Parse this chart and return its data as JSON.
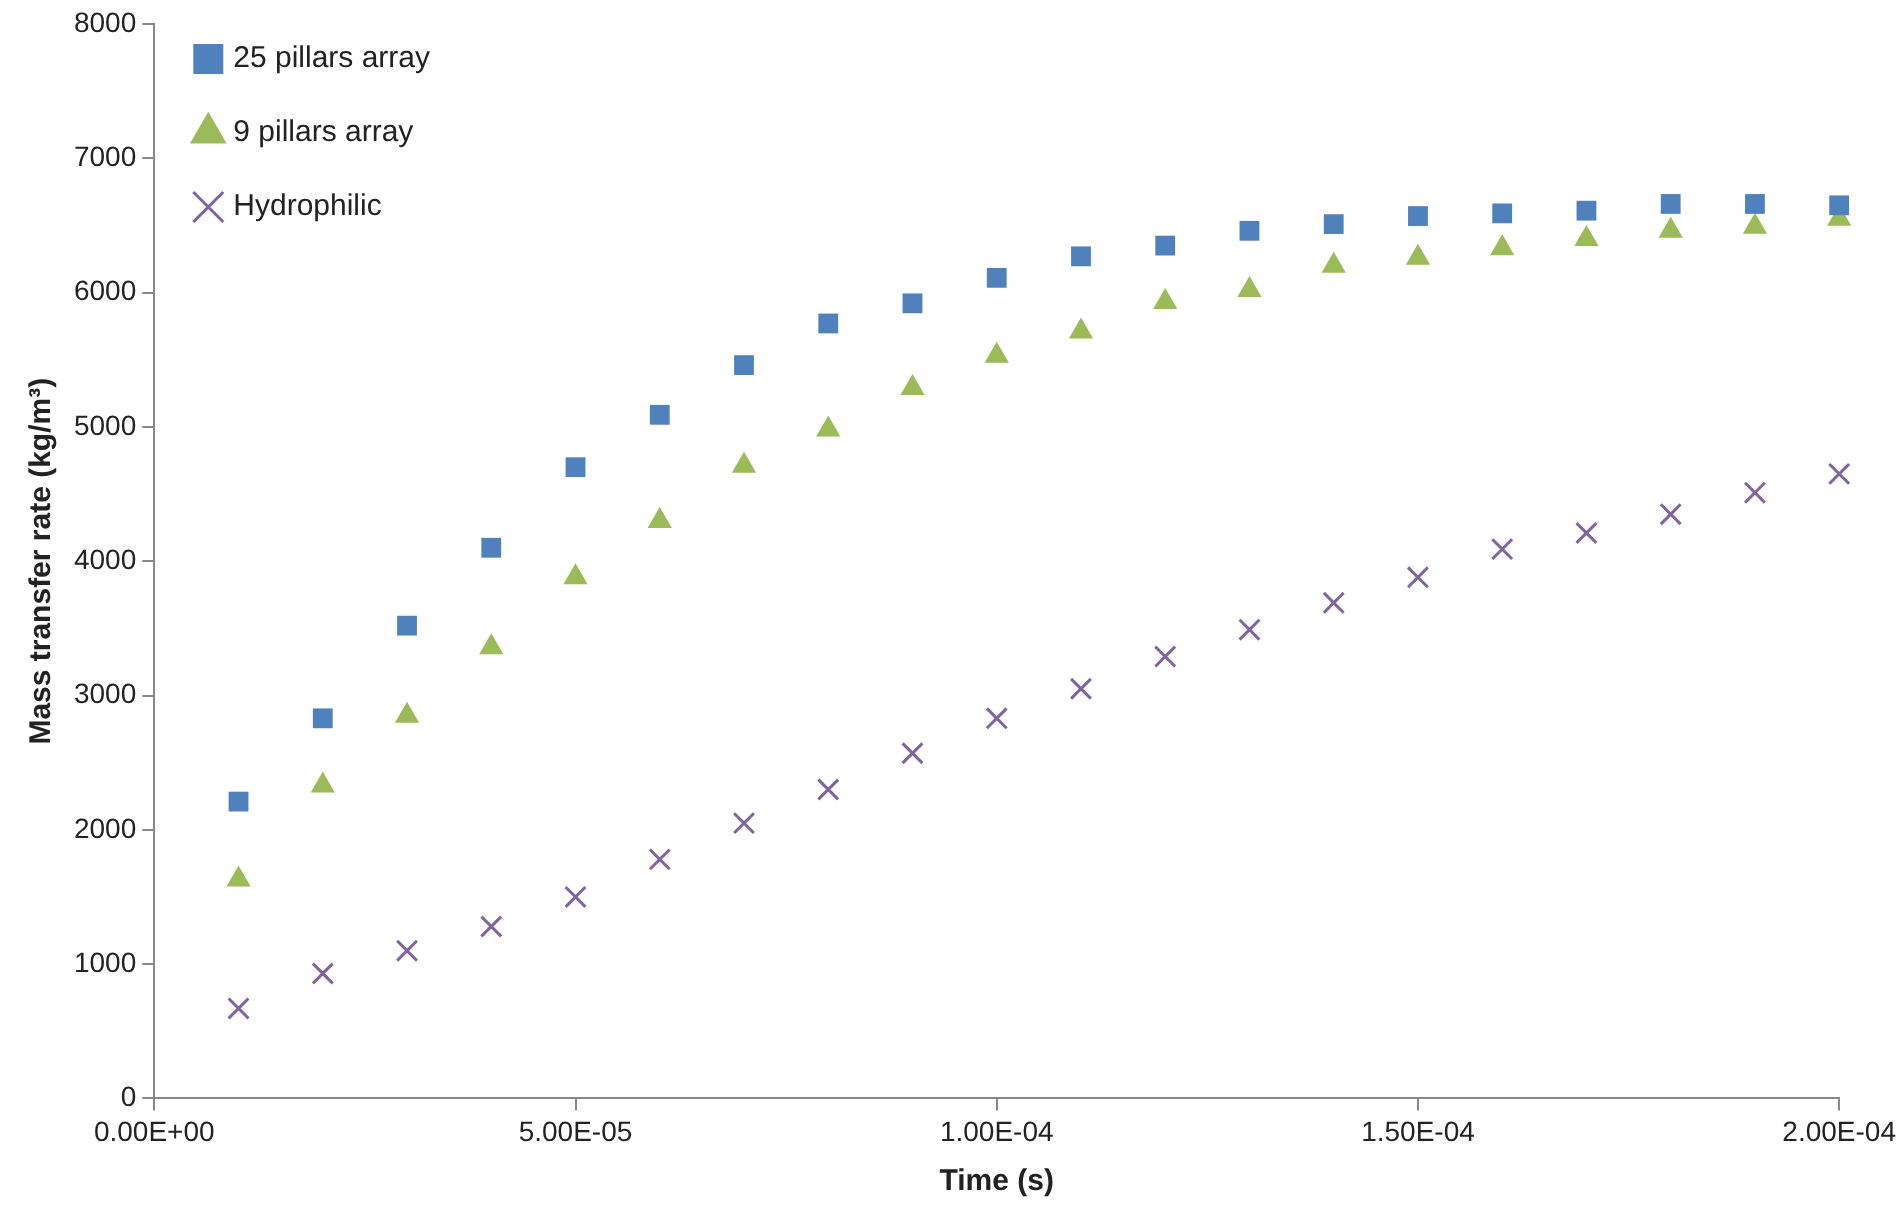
{
  "chart_data": {
    "type": "scatter",
    "xlabel": "Time (s)",
    "ylabel": "Mass transfer rate (kg/m³)",
    "x": [
      1e-05,
      2e-05,
      3e-05,
      4e-05,
      5e-05,
      6e-05,
      7e-05,
      8e-05,
      9e-05,
      0.0001,
      0.00011,
      0.00012,
      0.00013,
      0.00014,
      0.00015,
      0.00016,
      0.00017,
      0.00018,
      0.00019,
      0.0002
    ],
    "series": [
      {
        "name": "25 pillars array",
        "color": "#4f81bd",
        "marker": "square",
        "values": [
          2210,
          2830,
          3520,
          4100,
          4700,
          5090,
          5460,
          5770,
          5920,
          6110,
          6270,
          6350,
          6460,
          6510,
          6570,
          6590,
          6610,
          6660,
          6660,
          6650
        ]
      },
      {
        "name": "9 pillars array",
        "color": "#9bbb59",
        "marker": "triangle",
        "values": [
          1630,
          2330,
          2850,
          3360,
          3880,
          4300,
          4710,
          4980,
          5290,
          5530,
          5710,
          5930,
          6020,
          6200,
          6260,
          6330,
          6400,
          6460,
          6490,
          6550
        ]
      },
      {
        "name": "Hydrophilic",
        "color": "#8064a2",
        "marker": "cross",
        "values": [
          670,
          930,
          1100,
          1280,
          1500,
          1780,
          2050,
          2300,
          2570,
          2830,
          3050,
          3290,
          3490,
          3690,
          3880,
          4090,
          4210,
          4350,
          4510,
          4650
        ]
      }
    ],
    "xlim": [
      0,
      0.0002
    ],
    "xticks": [
      {
        "value": 0,
        "label": "0.00E+00"
      },
      {
        "value": 5e-05,
        "label": "5.00E-05"
      },
      {
        "value": 0.0001,
        "label": "1.00E-04"
      },
      {
        "value": 0.00015,
        "label": "1.50E-04"
      },
      {
        "value": 0.0002,
        "label": "2.00E-04"
      }
    ],
    "ylim": [
      0,
      8000
    ],
    "yticks": [
      0,
      1000,
      2000,
      3000,
      4000,
      5000,
      6000,
      7000,
      8000
    ],
    "grid": false,
    "legend": "top left"
  }
}
